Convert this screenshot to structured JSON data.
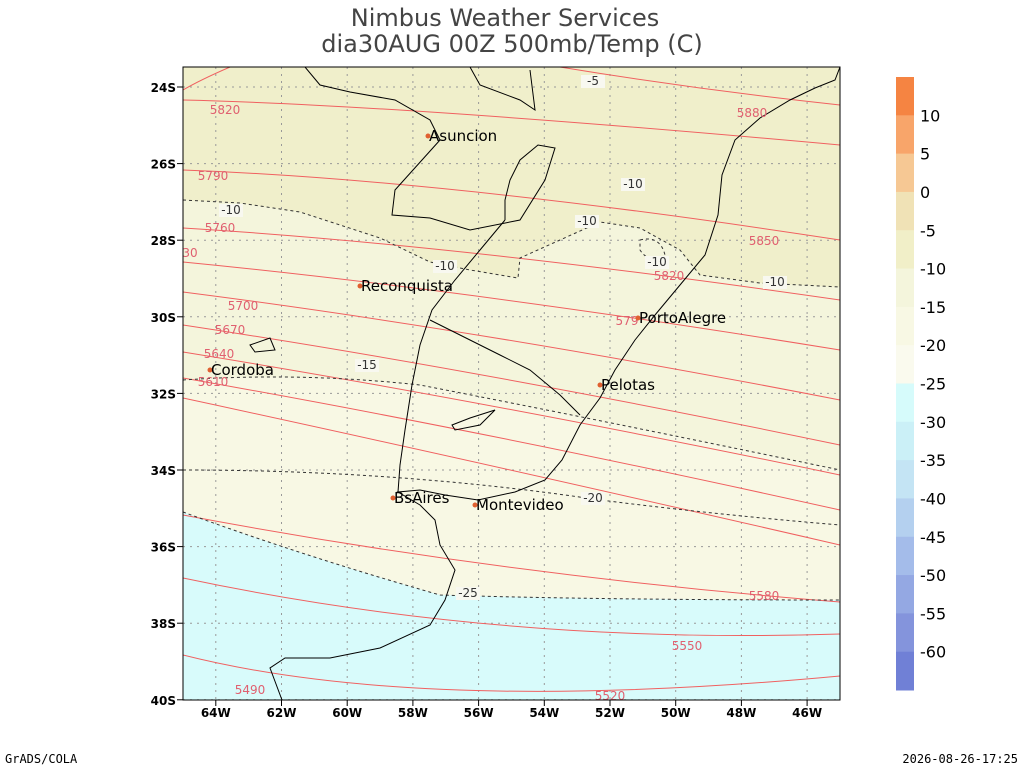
{
  "title": [
    "Nimbus Weather Services",
    "dia30AUG 00Z 500mb/Temp (C)"
  ],
  "y_axis_labels": [
    "24S",
    "26S",
    "28S",
    "30S",
    "32S",
    "34S",
    "36S",
    "38S",
    "40S"
  ],
  "x_axis_labels": [
    "64W",
    "62W",
    "60W",
    "58W",
    "56W",
    "54W",
    "52W",
    "50W",
    "48W",
    "46W"
  ],
  "cities": [
    "Asuncion",
    "Reconquista",
    "PortoAlegre",
    "Cordoba",
    "Pelotas",
    "BsAires",
    "Montevideo"
  ],
  "height_labels": [
    "5820",
    "5790",
    "5760",
    "30",
    "5700",
    "5670",
    "5640",
    "5610",
    "5880",
    "5850",
    "5820",
    "579",
    "5580",
    "5550",
    "5520",
    "5490"
  ],
  "temp_labels": [
    "-5",
    "-10",
    "-10",
    "-10",
    "-10",
    "-10",
    "-10",
    "-15",
    "-20",
    "-25"
  ],
  "colorbar": {
    "levels": [
      10,
      5,
      0,
      -5,
      -10,
      -15,
      -20,
      -25,
      -30,
      -35,
      -40,
      -45,
      -50,
      -55,
      -60
    ],
    "colors": [
      "#f58442",
      "#f8a56a",
      "#f6c894",
      "#f0e2b6",
      "#f1efc8",
      "#f4f5dc",
      "#f8f8e4",
      "#fafaee",
      "#d6fbfb",
      "#cbf0f7",
      "#c4e4f4",
      "#b4d0ef",
      "#a4bcea",
      "#94a8e3",
      "#8494dc",
      "#7080d6"
    ]
  },
  "footer_left": "GrADS/COLA",
  "footer_right": "2026-08-26-17:25"
}
